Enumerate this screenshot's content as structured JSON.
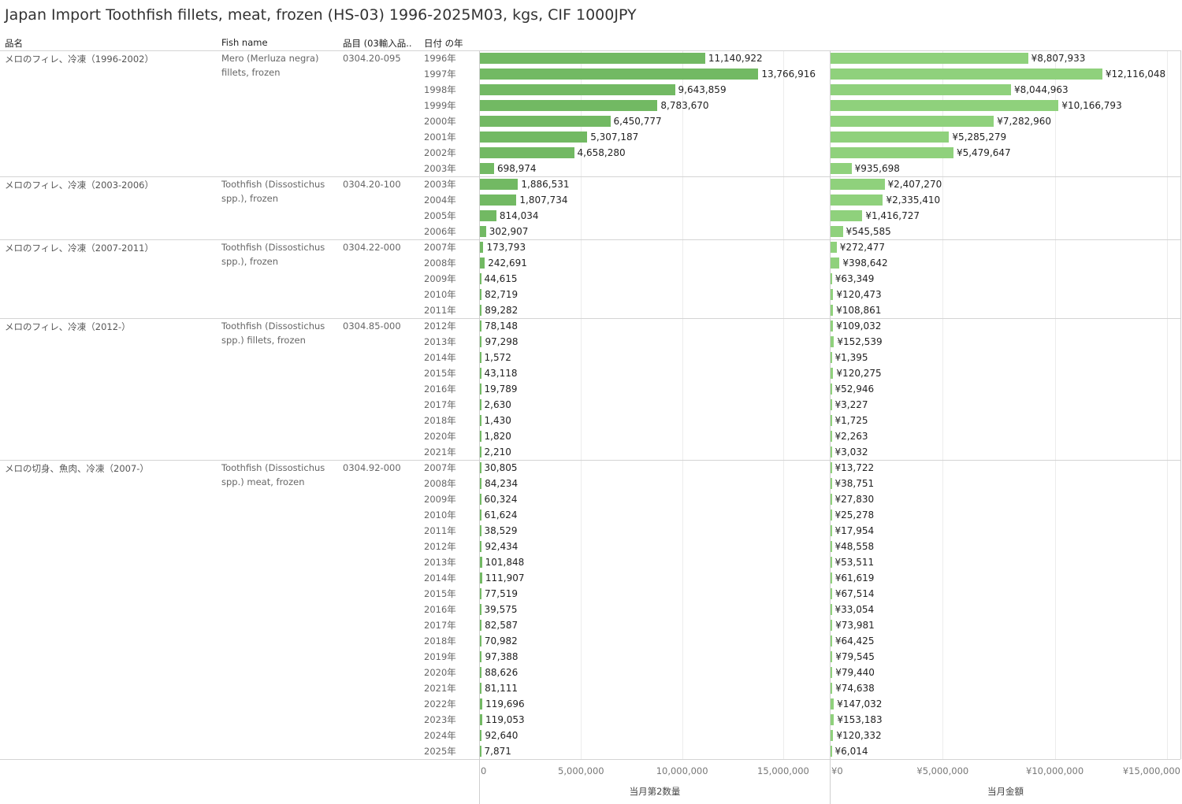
{
  "title": "Japan Import Toothfish fillets, meat, frozen (HS-03) 1996-2025M03, kgs, CIF 1000JPY",
  "headers": {
    "name": "品名",
    "fish": "Fish name",
    "code": "品目 (03輸入品..",
    "year": "日付 の年"
  },
  "colors": {
    "quantity_bar": "#72b963",
    "value_bar": "#8fd17c",
    "grid": "#ececec"
  },
  "chart_data": {
    "type": "bar",
    "orientation": "horizontal",
    "groups": [
      {
        "name": "メロのフィレ、冷凍（1996-2002）",
        "fish": "Mero (Merluza negra) fillets, frozen",
        "code": "0304.20-095",
        "rows": [
          {
            "year": "1996年",
            "quantity": 11140922,
            "quantity_label": "11,140,922",
            "value": 8807933,
            "value_label": "¥8,807,933"
          },
          {
            "year": "1997年",
            "quantity": 13766916,
            "quantity_label": "13,766,916",
            "value": 12116048,
            "value_label": "¥12,116,048"
          },
          {
            "year": "1998年",
            "quantity": 9643859,
            "quantity_label": "9,643,859",
            "value": 8044963,
            "value_label": "¥8,044,963"
          },
          {
            "year": "1999年",
            "quantity": 8783670,
            "quantity_label": "8,783,670",
            "value": 10166793,
            "value_label": "¥10,166,793"
          },
          {
            "year": "2000年",
            "quantity": 6450777,
            "quantity_label": "6,450,777",
            "value": 7282960,
            "value_label": "¥7,282,960"
          },
          {
            "year": "2001年",
            "quantity": 5307187,
            "quantity_label": "5,307,187",
            "value": 5285279,
            "value_label": "¥5,285,279"
          },
          {
            "year": "2002年",
            "quantity": 4658280,
            "quantity_label": "4,658,280",
            "value": 5479647,
            "value_label": "¥5,479,647"
          },
          {
            "year": "2003年",
            "quantity": 698974,
            "quantity_label": "698,974",
            "value": 935698,
            "value_label": "¥935,698"
          }
        ]
      },
      {
        "name": "メロのフィレ、冷凍（2003-2006）",
        "fish": "Toothfish (Dissostichus spp.), frozen",
        "code": "0304.20-100",
        "rows": [
          {
            "year": "2003年",
            "quantity": 1886531,
            "quantity_label": "1,886,531",
            "value": 2407270,
            "value_label": "¥2,407,270"
          },
          {
            "year": "2004年",
            "quantity": 1807734,
            "quantity_label": "1,807,734",
            "value": 2335410,
            "value_label": "¥2,335,410"
          },
          {
            "year": "2005年",
            "quantity": 814034,
            "quantity_label": "814,034",
            "value": 1416727,
            "value_label": "¥1,416,727"
          },
          {
            "year": "2006年",
            "quantity": 302907,
            "quantity_label": "302,907",
            "value": 545585,
            "value_label": "¥545,585"
          }
        ]
      },
      {
        "name": "メロのフィレ、冷凍（2007-2011）",
        "fish": "Toothfish (Dissostichus spp.), frozen",
        "code": "0304.22-000",
        "rows": [
          {
            "year": "2007年",
            "quantity": 173793,
            "quantity_label": "173,793",
            "value": 272477,
            "value_label": "¥272,477"
          },
          {
            "year": "2008年",
            "quantity": 242691,
            "quantity_label": "242,691",
            "value": 398642,
            "value_label": "¥398,642"
          },
          {
            "year": "2009年",
            "quantity": 44615,
            "quantity_label": "44,615",
            "value": 63349,
            "value_label": "¥63,349"
          },
          {
            "year": "2010年",
            "quantity": 82719,
            "quantity_label": "82,719",
            "value": 120473,
            "value_label": "¥120,473"
          },
          {
            "year": "2011年",
            "quantity": 89282,
            "quantity_label": "89,282",
            "value": 108861,
            "value_label": "¥108,861"
          }
        ]
      },
      {
        "name": "メロのフィレ、冷凍（2012-）",
        "fish": "Toothfish (Dissostichus spp.) fillets, frozen",
        "code": "0304.85-000",
        "rows": [
          {
            "year": "2012年",
            "quantity": 78148,
            "quantity_label": "78,148",
            "value": 109032,
            "value_label": "¥109,032"
          },
          {
            "year": "2013年",
            "quantity": 97298,
            "quantity_label": "97,298",
            "value": 152539,
            "value_label": "¥152,539"
          },
          {
            "year": "2014年",
            "quantity": 1572,
            "quantity_label": "1,572",
            "value": 1395,
            "value_label": "¥1,395"
          },
          {
            "year": "2015年",
            "quantity": 43118,
            "quantity_label": "43,118",
            "value": 120275,
            "value_label": "¥120,275"
          },
          {
            "year": "2016年",
            "quantity": 19789,
            "quantity_label": "19,789",
            "value": 52946,
            "value_label": "¥52,946"
          },
          {
            "year": "2017年",
            "quantity": 2630,
            "quantity_label": "2,630",
            "value": 3227,
            "value_label": "¥3,227"
          },
          {
            "year": "2018年",
            "quantity": 1430,
            "quantity_label": "1,430",
            "value": 1725,
            "value_label": "¥1,725"
          },
          {
            "year": "2020年",
            "quantity": 1820,
            "quantity_label": "1,820",
            "value": 2263,
            "value_label": "¥2,263"
          },
          {
            "year": "2021年",
            "quantity": 2210,
            "quantity_label": "2,210",
            "value": 3032,
            "value_label": "¥3,032"
          }
        ]
      },
      {
        "name": "メロの切身、魚肉、冷凍（2007-）",
        "fish": "Toothfish (Dissostichus spp.) meat, frozen",
        "code": "0304.92-000",
        "rows": [
          {
            "year": "2007年",
            "quantity": 30805,
            "quantity_label": "30,805",
            "value": 13722,
            "value_label": "¥13,722"
          },
          {
            "year": "2008年",
            "quantity": 84234,
            "quantity_label": "84,234",
            "value": 38751,
            "value_label": "¥38,751"
          },
          {
            "year": "2009年",
            "quantity": 60324,
            "quantity_label": "60,324",
            "value": 27830,
            "value_label": "¥27,830"
          },
          {
            "year": "2010年",
            "quantity": 61624,
            "quantity_label": "61,624",
            "value": 25278,
            "value_label": "¥25,278"
          },
          {
            "year": "2011年",
            "quantity": 38529,
            "quantity_label": "38,529",
            "value": 17954,
            "value_label": "¥17,954"
          },
          {
            "year": "2012年",
            "quantity": 92434,
            "quantity_label": "92,434",
            "value": 48558,
            "value_label": "¥48,558"
          },
          {
            "year": "2013年",
            "quantity": 101848,
            "quantity_label": "101,848",
            "value": 53511,
            "value_label": "¥53,511"
          },
          {
            "year": "2014年",
            "quantity": 111907,
            "quantity_label": "111,907",
            "value": 61619,
            "value_label": "¥61,619"
          },
          {
            "year": "2015年",
            "quantity": 77519,
            "quantity_label": "77,519",
            "value": 67514,
            "value_label": "¥67,514"
          },
          {
            "year": "2016年",
            "quantity": 39575,
            "quantity_label": "39,575",
            "value": 33054,
            "value_label": "¥33,054"
          },
          {
            "year": "2017年",
            "quantity": 82587,
            "quantity_label": "82,587",
            "value": 73981,
            "value_label": "¥73,981"
          },
          {
            "year": "2018年",
            "quantity": 70982,
            "quantity_label": "70,982",
            "value": 64425,
            "value_label": "¥64,425"
          },
          {
            "year": "2019年",
            "quantity": 97388,
            "quantity_label": "97,388",
            "value": 79545,
            "value_label": "¥79,545"
          },
          {
            "year": "2020年",
            "quantity": 88626,
            "quantity_label": "88,626",
            "value": 79440,
            "value_label": "¥79,440"
          },
          {
            "year": "2021年",
            "quantity": 81111,
            "quantity_label": "81,111",
            "value": 74638,
            "value_label": "¥74,638"
          },
          {
            "year": "2022年",
            "quantity": 119696,
            "quantity_label": "119,696",
            "value": 147032,
            "value_label": "¥147,032"
          },
          {
            "year": "2023年",
            "quantity": 119053,
            "quantity_label": "119,053",
            "value": 153183,
            "value_label": "¥153,183"
          },
          {
            "year": "2024年",
            "quantity": 92640,
            "quantity_label": "92,640",
            "value": 120332,
            "value_label": "¥120,332"
          },
          {
            "year": "2025年",
            "quantity": 7871,
            "quantity_label": "7,871",
            "value": 6014,
            "value_label": "¥6,014"
          }
        ]
      }
    ],
    "axes": [
      {
        "measure": "quantity",
        "title": "当月第2数量",
        "range": [
          0,
          17300000
        ],
        "ticks": [
          0,
          5000000,
          10000000,
          15000000
        ],
        "tick_labels": [
          "0",
          "5,000,000",
          "10,000,000",
          "15,000,000"
        ]
      },
      {
        "measure": "value",
        "title": "当月金額",
        "range": [
          0,
          15600000
        ],
        "ticks": [
          0,
          5000000,
          10000000,
          15000000
        ],
        "tick_labels": [
          "¥0",
          "¥5,000,000",
          "¥10,000,000",
          "¥15,000,000"
        ]
      }
    ],
    "grid": true
  }
}
